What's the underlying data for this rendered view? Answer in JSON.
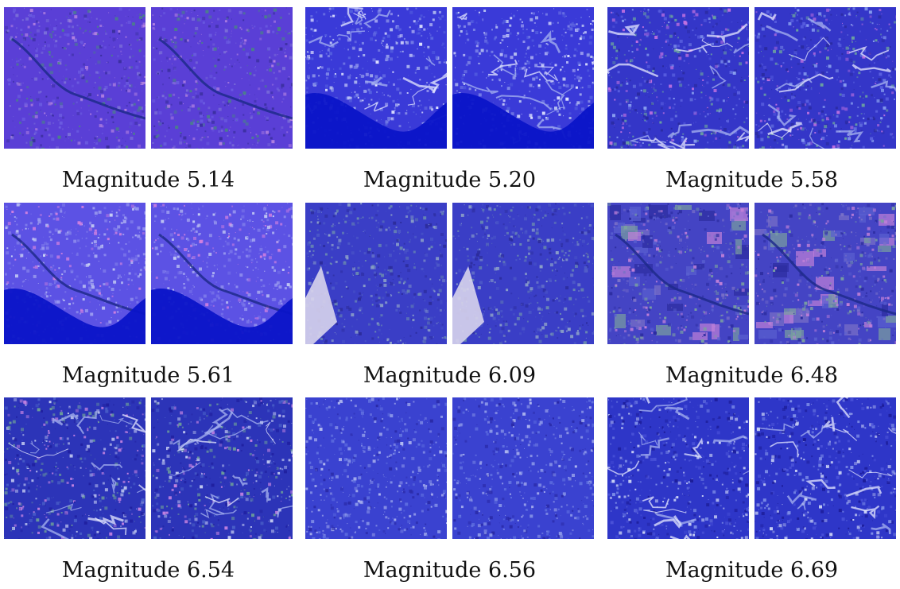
{
  "panels": [
    {
      "caption": "Magnitude 5.14",
      "terrain": "river-plain"
    },
    {
      "caption": "Magnitude 5.20",
      "terrain": "ridges-coast"
    },
    {
      "caption": "Magnitude 5.58",
      "terrain": "hills-green"
    },
    {
      "caption": "Magnitude 5.61",
      "terrain": "delta-coast"
    },
    {
      "caption": "Magnitude 6.09",
      "terrain": "fields-bright-patch"
    },
    {
      "caption": "Magnitude 6.48",
      "terrain": "farmland-river"
    },
    {
      "caption": "Magnitude 6.54",
      "terrain": "mountains-streaks"
    },
    {
      "caption": "Magnitude 6.56",
      "terrain": "speckled-forest"
    },
    {
      "caption": "Magnitude 6.69",
      "terrain": "mountain-ridges"
    }
  ]
}
